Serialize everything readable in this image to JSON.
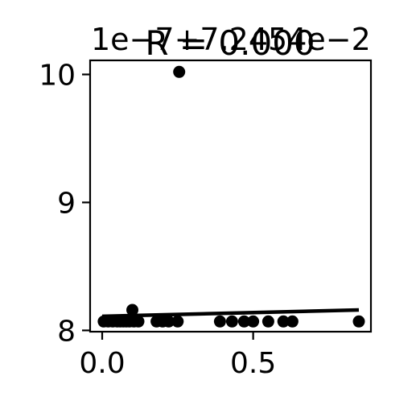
{
  "chart_data": {
    "type": "scatter",
    "title": "R = 0.000",
    "offset_text": "1e−7+7.2454e−2",
    "xlabel": "",
    "ylabel": "",
    "xlim": [
      -0.04,
      0.89
    ],
    "ylim": [
      7.99,
      10.11
    ],
    "xticks": [
      0.0,
      0.5
    ],
    "xtick_labels": [
      "0.0",
      "0.5"
    ],
    "yticks": [
      8,
      9,
      10
    ],
    "ytick_labels": [
      "8",
      "9",
      "10"
    ],
    "grid": false,
    "legend": "none",
    "colors": {
      "points": "#000000",
      "line": "#000000"
    },
    "points": {
      "x": [
        0.005,
        0.02,
        0.035,
        0.05,
        0.06,
        0.07,
        0.08,
        0.09,
        0.1,
        0.105,
        0.12,
        0.18,
        0.2,
        0.22,
        0.25,
        0.255,
        0.39,
        0.43,
        0.47,
        0.5,
        0.55,
        0.6,
        0.63,
        0.85
      ],
      "y": [
        8.07,
        8.07,
        8.07,
        8.07,
        8.07,
        8.07,
        8.07,
        8.07,
        8.16,
        8.07,
        8.07,
        8.07,
        8.07,
        8.07,
        8.07,
        10.02,
        8.07,
        8.07,
        8.07,
        8.07,
        8.07,
        8.07,
        8.07,
        8.07
      ]
    },
    "fit_line": {
      "x": [
        0.0,
        0.85
      ],
      "y": [
        8.11,
        8.16
      ]
    }
  }
}
